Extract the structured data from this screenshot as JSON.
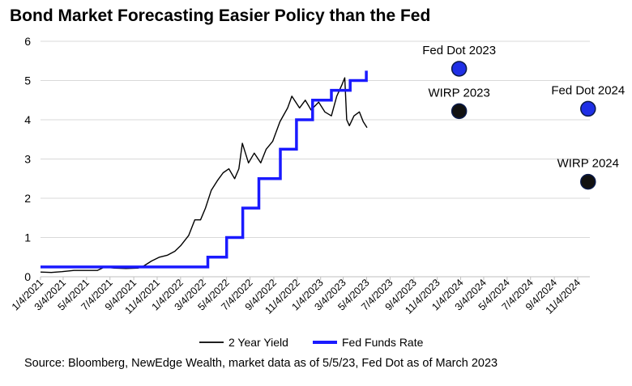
{
  "title": "Bond Market Forecasting Easier Policy than the Fed",
  "source": "Source: Bloomberg, NewEdge Wealth, market data as of 5/5/23, Fed Dot as of March 2023",
  "colors": {
    "yield": "#000000",
    "fed_funds": "#1a1aff",
    "marker_blue": "#1f2fe6",
    "marker_black": "#111111",
    "grid": "#d9d9d9"
  },
  "chart_data": {
    "type": "line",
    "title": "Bond Market Forecasting Easier Policy than the Fed",
    "xlabel": "",
    "ylabel": "",
    "xlim": [
      "2021-01-04",
      "2024-11-04"
    ],
    "ylim": [
      0,
      6
    ],
    "grid": true,
    "yticks": [
      "0",
      "1",
      "2",
      "3",
      "4",
      "5",
      "6"
    ],
    "xticks": [
      "1/4/2021",
      "3/4/2021",
      "5/4/2021",
      "7/4/2021",
      "9/4/2021",
      "11/4/2021",
      "1/4/2022",
      "3/4/2022",
      "5/4/2022",
      "7/4/2022",
      "9/4/2022",
      "11/4/2022",
      "1/4/2023",
      "3/4/2023",
      "5/4/2023",
      "7/4/2023",
      "9/4/2023",
      "11/4/2023",
      "1/4/2024",
      "3/4/2024",
      "5/4/2024",
      "7/4/2024",
      "9/4/2024",
      "11/4/2024"
    ],
    "legend_position": "bottom",
    "series": [
      {
        "name": "2 Year Yield",
        "style": "thin-line",
        "points": [
          [
            "2021-01-04",
            0.12
          ],
          [
            "2021-02-01",
            0.11
          ],
          [
            "2021-03-01",
            0.13
          ],
          [
            "2021-04-01",
            0.16
          ],
          [
            "2021-05-01",
            0.16
          ],
          [
            "2021-06-01",
            0.16
          ],
          [
            "2021-06-20",
            0.25
          ],
          [
            "2021-07-15",
            0.22
          ],
          [
            "2021-08-15",
            0.21
          ],
          [
            "2021-09-15",
            0.22
          ],
          [
            "2021-10-01",
            0.28
          ],
          [
            "2021-10-20",
            0.4
          ],
          [
            "2021-11-10",
            0.5
          ],
          [
            "2021-12-01",
            0.55
          ],
          [
            "2021-12-20",
            0.65
          ],
          [
            "2022-01-05",
            0.8
          ],
          [
            "2022-01-25",
            1.05
          ],
          [
            "2022-02-10",
            1.45
          ],
          [
            "2022-02-25",
            1.45
          ],
          [
            "2022-03-10",
            1.75
          ],
          [
            "2022-03-25",
            2.2
          ],
          [
            "2022-04-10",
            2.45
          ],
          [
            "2022-04-25",
            2.65
          ],
          [
            "2022-05-10",
            2.75
          ],
          [
            "2022-05-25",
            2.5
          ],
          [
            "2022-06-05",
            2.75
          ],
          [
            "2022-06-14",
            3.4
          ],
          [
            "2022-06-30",
            2.9
          ],
          [
            "2022-07-15",
            3.15
          ],
          [
            "2022-08-01",
            2.9
          ],
          [
            "2022-08-15",
            3.25
          ],
          [
            "2022-09-01",
            3.45
          ],
          [
            "2022-09-20",
            3.95
          ],
          [
            "2022-10-10",
            4.3
          ],
          [
            "2022-10-21",
            4.6
          ],
          [
            "2022-11-10",
            4.3
          ],
          [
            "2022-11-25",
            4.5
          ],
          [
            "2022-12-10",
            4.25
          ],
          [
            "2022-12-30",
            4.45
          ],
          [
            "2023-01-15",
            4.2
          ],
          [
            "2023-02-01",
            4.1
          ],
          [
            "2023-02-15",
            4.6
          ],
          [
            "2023-03-01",
            4.9
          ],
          [
            "2023-03-08",
            5.07
          ],
          [
            "2023-03-13",
            4.0
          ],
          [
            "2023-03-20",
            3.85
          ],
          [
            "2023-04-01",
            4.1
          ],
          [
            "2023-04-15",
            4.2
          ],
          [
            "2023-04-25",
            3.95
          ],
          [
            "2023-05-05",
            3.8
          ]
        ]
      },
      {
        "name": "Fed Funds Rate",
        "style": "thick-step",
        "points": [
          [
            "2021-01-04",
            0.25
          ],
          [
            "2022-03-16",
            0.25
          ],
          [
            "2022-03-16",
            0.5
          ],
          [
            "2022-05-04",
            0.5
          ],
          [
            "2022-05-04",
            1.0
          ],
          [
            "2022-06-15",
            1.0
          ],
          [
            "2022-06-15",
            1.75
          ],
          [
            "2022-07-27",
            1.75
          ],
          [
            "2022-07-27",
            2.5
          ],
          [
            "2022-09-21",
            2.5
          ],
          [
            "2022-09-21",
            3.25
          ],
          [
            "2022-11-02",
            3.25
          ],
          [
            "2022-11-02",
            4.0
          ],
          [
            "2022-12-14",
            4.0
          ],
          [
            "2022-12-14",
            4.5
          ],
          [
            "2023-02-01",
            4.5
          ],
          [
            "2023-02-01",
            4.75
          ],
          [
            "2023-03-22",
            4.75
          ],
          [
            "2023-03-22",
            5.0
          ],
          [
            "2023-05-03",
            5.0
          ],
          [
            "2023-05-03",
            5.25
          ]
        ]
      }
    ],
    "markers": [
      {
        "label": "Fed Dot 2023",
        "date": "2023-12-31",
        "value": 5.3,
        "color": "blue"
      },
      {
        "label": "WIRP 2023",
        "date": "2023-12-31",
        "value": 4.22,
        "color": "black"
      },
      {
        "label": "Fed Dot 2024",
        "date": "2024-12-01",
        "value": 4.28,
        "color": "blue"
      },
      {
        "label": "WIRP 2024",
        "date": "2024-12-01",
        "value": 2.42,
        "color": "black"
      }
    ]
  }
}
